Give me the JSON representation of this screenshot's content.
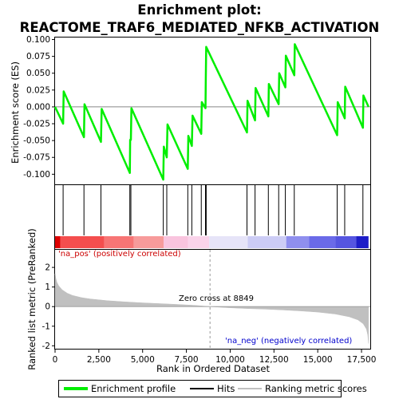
{
  "chart_data": {
    "type": "line",
    "title_lines": [
      "Enrichment plot:",
      "REACTOME_TRAF6_MEDIATED_NFKB_ACTIVATION"
    ],
    "es_panel": {
      "ylabel": "Enrichment score (ES)",
      "ylim": [
        -0.115,
        0.103
      ],
      "yticks": [
        -0.1,
        -0.075,
        -0.05,
        -0.025,
        0.0,
        0.025,
        0.05,
        0.075,
        0.1
      ],
      "ytick_labels": [
        "-0.100",
        "-0.075",
        "-0.050",
        "-0.025",
        "0.000",
        "0.025",
        "0.050",
        "0.075",
        "0.100"
      ],
      "grid": false,
      "series_name": "Enrichment profile",
      "color": "#00ee00",
      "points": [
        [
          0,
          0.0
        ],
        [
          460,
          -0.025
        ],
        [
          490,
          0.023
        ],
        [
          1650,
          -0.045
        ],
        [
          1680,
          0.004
        ],
        [
          2620,
          -0.052
        ],
        [
          2660,
          -0.003
        ],
        [
          4270,
          -0.098
        ],
        [
          4290,
          -0.049
        ],
        [
          4330,
          -0.049
        ],
        [
          4360,
          -0.002
        ],
        [
          6180,
          -0.108
        ],
        [
          6210,
          -0.059
        ],
        [
          6380,
          -0.075
        ],
        [
          6420,
          -0.026
        ],
        [
          7580,
          -0.092
        ],
        [
          7610,
          -0.043
        ],
        [
          7810,
          -0.058
        ],
        [
          7850,
          -0.013
        ],
        [
          8350,
          -0.04
        ],
        [
          8380,
          0.007
        ],
        [
          8590,
          -0.002
        ],
        [
          8610,
          0.043
        ],
        [
          8630,
          0.089
        ],
        [
          10960,
          -0.038
        ],
        [
          10990,
          0.009
        ],
        [
          11420,
          -0.02
        ],
        [
          11450,
          0.028
        ],
        [
          12180,
          -0.014
        ],
        [
          12210,
          0.034
        ],
        [
          12770,
          0.004
        ],
        [
          12800,
          0.05
        ],
        [
          13150,
          0.029
        ],
        [
          13180,
          0.076
        ],
        [
          13660,
          0.047
        ],
        [
          13690,
          0.093
        ],
        [
          16110,
          -0.042
        ],
        [
          16140,
          0.007
        ],
        [
          16540,
          -0.017
        ],
        [
          16570,
          0.03
        ],
        [
          17580,
          -0.031
        ],
        [
          17610,
          0.017
        ],
        [
          17900,
          0.0
        ]
      ]
    },
    "hits_panel": {
      "series_name": "Hits",
      "color": "#000000",
      "positions": [
        460,
        1650,
        2620,
        4270,
        4330,
        6180,
        6380,
        7580,
        7810,
        8350,
        8590,
        8630,
        10960,
        11420,
        12180,
        12770,
        13150,
        13660,
        16110,
        16540,
        17580
      ]
    },
    "color_band": {
      "label_pos": "'na_pos' (positively correlated)",
      "label_neg": "'na_neg' (negatively correlated)",
      "segments": [
        {
          "x0": 0,
          "x1": 300,
          "color": "#dd0000"
        },
        {
          "x0": 300,
          "x1": 2800,
          "color": "#f44e4e"
        },
        {
          "x0": 2800,
          "x1": 4500,
          "color": "#f77575"
        },
        {
          "x0": 4500,
          "x1": 6200,
          "color": "#f79b9b"
        },
        {
          "x0": 6200,
          "x1": 7600,
          "color": "#f9c4de"
        },
        {
          "x0": 7600,
          "x1": 8800,
          "color": "#fad3ea"
        },
        {
          "x0": 8800,
          "x1": 11000,
          "color": "#e6e4f8"
        },
        {
          "x0": 11000,
          "x1": 13200,
          "color": "#ccccf5"
        },
        {
          "x0": 13200,
          "x1": 14500,
          "color": "#8f8fee"
        },
        {
          "x0": 14500,
          "x1": 16000,
          "color": "#6a6ae8"
        },
        {
          "x0": 16000,
          "x1": 17200,
          "color": "#5555e0"
        },
        {
          "x0": 17200,
          "x1": 17900,
          "color": "#1d1dc8"
        }
      ]
    },
    "metric_panel": {
      "ylabel": "Ranked list metric (PreRanked)",
      "ylim": [
        -2.15,
        2.9
      ],
      "yticks": [
        -2,
        -1,
        0,
        1,
        2
      ],
      "ytick_labels": [
        "-2",
        "-1",
        "0",
        "1",
        "2"
      ],
      "series_name": "Ranking metric scores",
      "color": "#c0c0c0",
      "zero_cross_label": "Zero cross at 8849",
      "zero_cross": 8849,
      "points": [
        [
          0,
          1.68
        ],
        [
          40,
          1.45
        ],
        [
          100,
          1.25
        ],
        [
          200,
          1.07
        ],
        [
          400,
          0.86
        ],
        [
          700,
          0.68
        ],
        [
          1000,
          0.57
        ],
        [
          1500,
          0.46
        ],
        [
          2000,
          0.39
        ],
        [
          3000,
          0.3
        ],
        [
          4000,
          0.24
        ],
        [
          5000,
          0.19
        ],
        [
          6000,
          0.15
        ],
        [
          7000,
          0.11
        ],
        [
          8000,
          0.06
        ],
        [
          8849,
          0.0
        ],
        [
          10000,
          -0.06
        ],
        [
          11000,
          -0.1
        ],
        [
          12000,
          -0.13
        ],
        [
          13000,
          -0.17
        ],
        [
          14000,
          -0.22
        ],
        [
          15000,
          -0.28
        ],
        [
          16000,
          -0.38
        ],
        [
          16800,
          -0.52
        ],
        [
          17300,
          -0.68
        ],
        [
          17600,
          -0.88
        ],
        [
          17780,
          -1.15
        ],
        [
          17860,
          -1.45
        ],
        [
          17900,
          -1.88
        ]
      ]
    },
    "x_axis": {
      "label": "Rank in Ordered Dataset",
      "xlim": [
        0,
        18000
      ],
      "ticks": [
        0,
        2500,
        5000,
        7500,
        10000,
        12500,
        15000,
        17500
      ],
      "tick_labels": [
        "0",
        "2,500",
        "5,000",
        "7,500",
        "10,000",
        "12,500",
        "15,000",
        "17,500"
      ]
    },
    "legend": {
      "placement": "bottom",
      "entries": [
        {
          "label": "Enrichment profile",
          "color": "#00ee00"
        },
        {
          "label": "Hits",
          "color": "#000000"
        },
        {
          "label": "Ranking metric scores",
          "color": "#c0c0c0"
        }
      ]
    }
  }
}
